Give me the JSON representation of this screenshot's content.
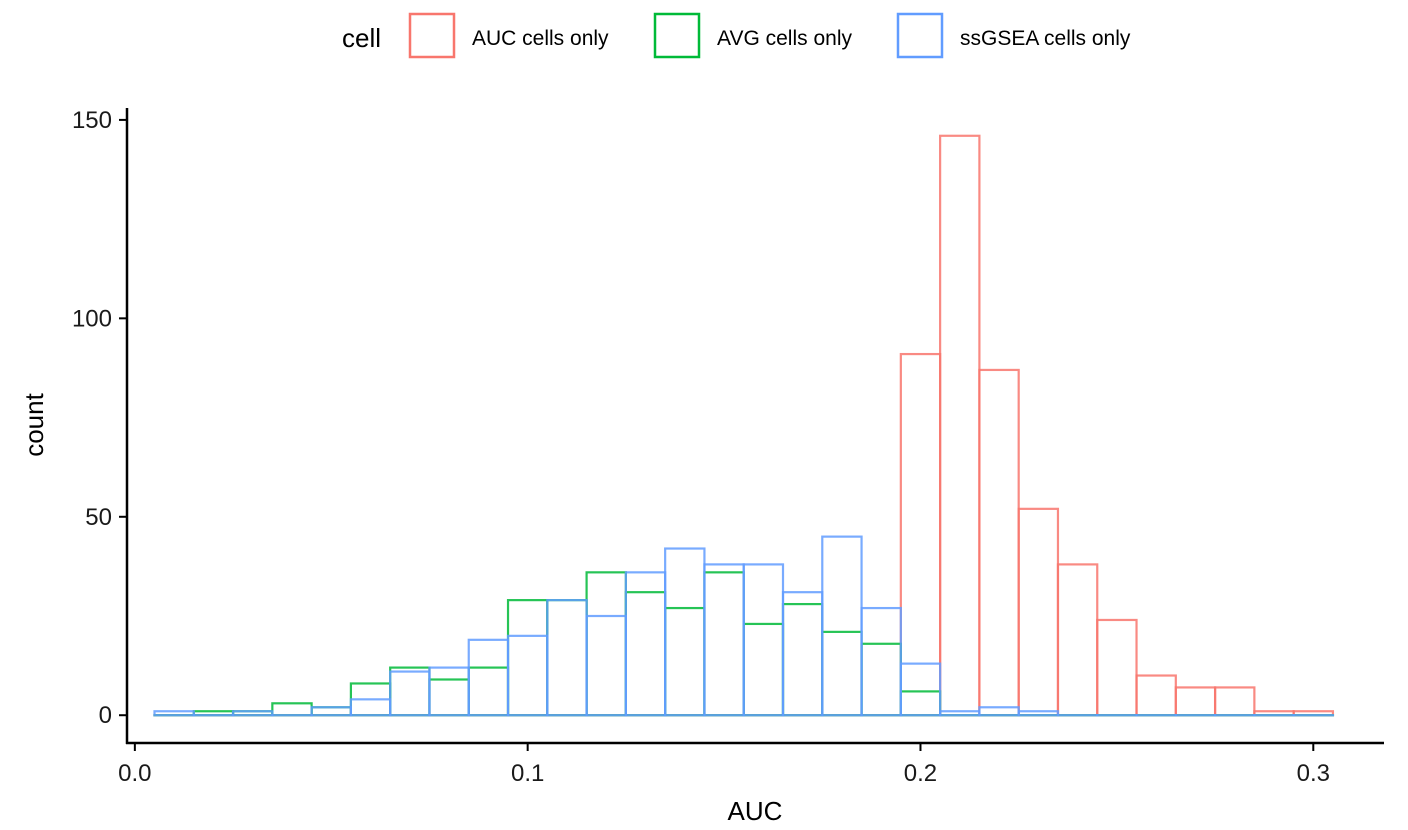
{
  "chart_data": {
    "type": "bar",
    "subtype": "histogram-overlay",
    "title": "",
    "xlabel": "AUC",
    "ylabel": "count",
    "xlim": [
      -0.002,
      0.318
    ],
    "ylim": [
      -7,
      153
    ],
    "xticks": [
      0.0,
      0.1,
      0.2,
      0.3
    ],
    "xtick_labels": [
      "0.0",
      "0.1",
      "0.2",
      "0.3"
    ],
    "yticks": [
      0,
      50,
      100,
      150
    ],
    "ytick_labels": [
      "0",
      "50",
      "100",
      "150"
    ],
    "grid": false,
    "legend": {
      "title": "cell",
      "position": "top"
    },
    "bin_width": 0.01,
    "bin_start": 0.005,
    "series": [
      {
        "name": "AUC cells only",
        "color": "#F8766D",
        "values": [
          0,
          0,
          0,
          0,
          0,
          0,
          0,
          0,
          0,
          0,
          0,
          0,
          0,
          0,
          0,
          0,
          0,
          0,
          0,
          91,
          146,
          87,
          52,
          38,
          24,
          10,
          7,
          7,
          1,
          1
        ]
      },
      {
        "name": "AVG cells only",
        "color": "#00BA38",
        "values": [
          0,
          1,
          1,
          3,
          2,
          8,
          12,
          9,
          12,
          29,
          29,
          36,
          31,
          27,
          36,
          23,
          28,
          21,
          18,
          6,
          0,
          0,
          0,
          0,
          0,
          0,
          0,
          0,
          0,
          0
        ]
      },
      {
        "name": "ssGSEA cells only",
        "color": "#619CFF",
        "values": [
          1,
          0,
          1,
          0,
          2,
          4,
          11,
          12,
          19,
          20,
          29,
          25,
          36,
          42,
          38,
          38,
          31,
          45,
          27,
          13,
          1,
          2,
          1,
          0,
          0,
          0,
          0,
          0,
          0,
          0
        ]
      }
    ]
  }
}
